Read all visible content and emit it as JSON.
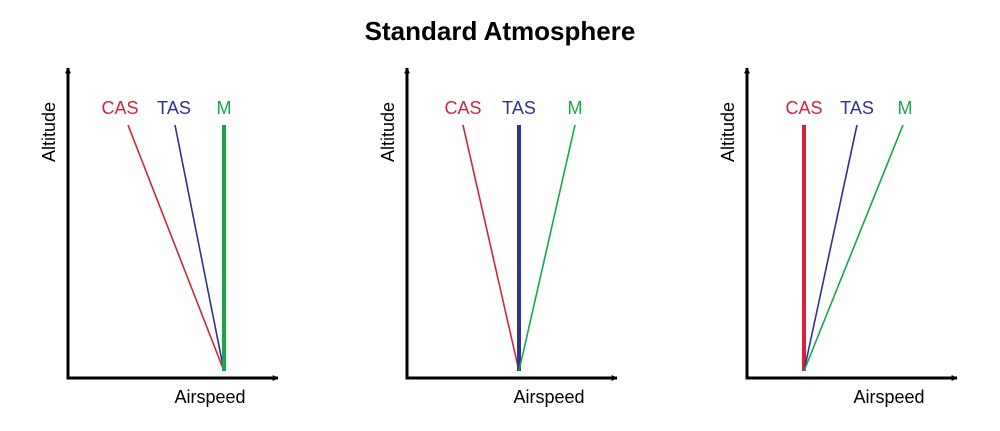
{
  "title": "Standard Atmosphere",
  "panels": [
    {
      "x_label": "Airspeed",
      "y_label": "Altitude",
      "lines": [
        "CAS",
        "TAS",
        "M"
      ]
    },
    {
      "x_label": "Airspeed",
      "y_label": "Altitude",
      "lines": [
        "CAS",
        "TAS",
        "M"
      ]
    },
    {
      "x_label": "Airspeed",
      "y_label": "Altitude",
      "lines": [
        "CAS",
        "TAS",
        "M"
      ]
    }
  ]
}
